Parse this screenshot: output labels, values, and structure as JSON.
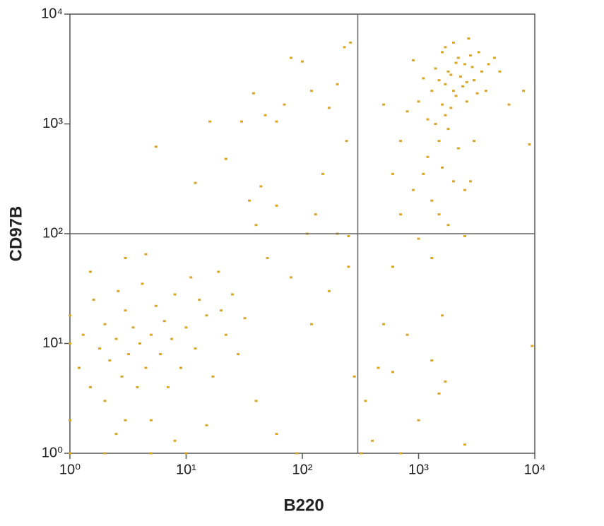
{
  "chart_data": {
    "type": "scatter",
    "xlabel": "B220",
    "ylabel": "CD97B",
    "xscale": "log",
    "yscale": "log",
    "color": "#d9a629",
    "xlim": [
      1,
      10000
    ],
    "ylim": [
      1,
      10000
    ],
    "xticks": [
      {
        "value": 1,
        "label": "10⁰"
      },
      {
        "value": 10,
        "label": "10¹"
      },
      {
        "value": 100,
        "label": "10²"
      },
      {
        "value": 1000,
        "label": "10³"
      },
      {
        "value": 10000,
        "label": "10⁴"
      }
    ],
    "yticks": [
      {
        "value": 1,
        "label": "10⁰"
      },
      {
        "value": 10,
        "label": "10¹"
      },
      {
        "value": 100,
        "label": "10²"
      },
      {
        "value": 1000,
        "label": "10³"
      },
      {
        "value": 10000,
        "label": "10⁴"
      }
    ],
    "quadrant_lines": {
      "x": 300,
      "y": 100
    },
    "x": [
      1500,
      1800,
      2000,
      2200,
      1600,
      2500,
      3000,
      1700,
      1900,
      2100,
      1400,
      2400,
      2800,
      3500,
      1300,
      1200,
      1600,
      2000,
      2600,
      3200,
      4000,
      1800,
      1500,
      2200,
      1100,
      900,
      1000,
      2700,
      3800,
      5000,
      1700,
      2300,
      1900,
      1400,
      2900,
      3300,
      4500,
      6000,
      1200,
      1600,
      2000,
      2500,
      800,
      700,
      1100,
      1300,
      2800,
      1500,
      3000,
      900,
      600,
      1800,
      2500,
      1000,
      1300,
      700,
      500,
      8000,
      9000,
      1700,
      2100,
      2600,
      5.5,
      12,
      16,
      22,
      30,
      35,
      38,
      44,
      48,
      60,
      70,
      80,
      100,
      120,
      150,
      170,
      200,
      230,
      240,
      260,
      40,
      60,
      110,
      130,
      200,
      250,
      20,
      50,
      80,
      120,
      170,
      250,
      280,
      1,
      1,
      1,
      1.2,
      1.3,
      1.5,
      1.6,
      1.8,
      2,
      2,
      2.2,
      2.5,
      2.6,
      2.8,
      3,
      3,
      3.2,
      3.5,
      3.8,
      4,
      4.2,
      4.5,
      5,
      5,
      5.5,
      6,
      6.5,
      7,
      7.5,
      8,
      9,
      10,
      11,
      12,
      13,
      15,
      17,
      19,
      22,
      25,
      28,
      32,
      3,
      4.5,
      1.5,
      2,
      5,
      10,
      1,
      2.5,
      8,
      15,
      40,
      60,
      90,
      320,
      350,
      400,
      450,
      500,
      600,
      700,
      800,
      1000,
      1300,
      1500,
      1700,
      2500,
      9500,
      600,
      1600
    ],
    "y": [
      2500,
      3000,
      2000,
      4000,
      1500,
      3500,
      2500,
      1200,
      2800,
      1800,
      3200,
      2200,
      4200,
      3000,
      2000,
      1100,
      4500,
      5500,
      1600,
      1900,
      3500,
      900,
      700,
      600,
      2600,
      3800,
      1600,
      6000,
      2000,
      3000,
      2300,
      2700,
      1400,
      1000,
      3300,
      4500,
      4000,
      1500,
      500,
      400,
      300,
      250,
      1300,
      700,
      350,
      200,
      300,
      150,
      700,
      250,
      350,
      120,
      95,
      90,
      60,
      150,
      1500,
      2000,
      650,
      5000,
      3600,
      2400,
      620,
      290,
      1050,
      480,
      1050,
      200,
      1900,
      270,
      1200,
      1050,
      1500,
      4000,
      3700,
      2000,
      350,
      1400,
      2300,
      5000,
      700,
      5500,
      120,
      180,
      100,
      150,
      100,
      95,
      20,
      60,
      40,
      15,
      30,
      50,
      5,
      18,
      10,
      2,
      6,
      12,
      4,
      25,
      9,
      15,
      3,
      7,
      11,
      30,
      5,
      2,
      20,
      8,
      14,
      4,
      10,
      35,
      6,
      12,
      2,
      22,
      8,
      16,
      4,
      11,
      28,
      6,
      14,
      40,
      9,
      25,
      18,
      5,
      45,
      12,
      28,
      8,
      17,
      60,
      65,
      45,
      1,
      1,
      1,
      1,
      1.5,
      1.3,
      1.8,
      3,
      1.5,
      1,
      1,
      3,
      1.3,
      6,
      15,
      5.5,
      1,
      12,
      2,
      7,
      3.5,
      4.5,
      1.2,
      9.5,
      50,
      18
    ]
  }
}
